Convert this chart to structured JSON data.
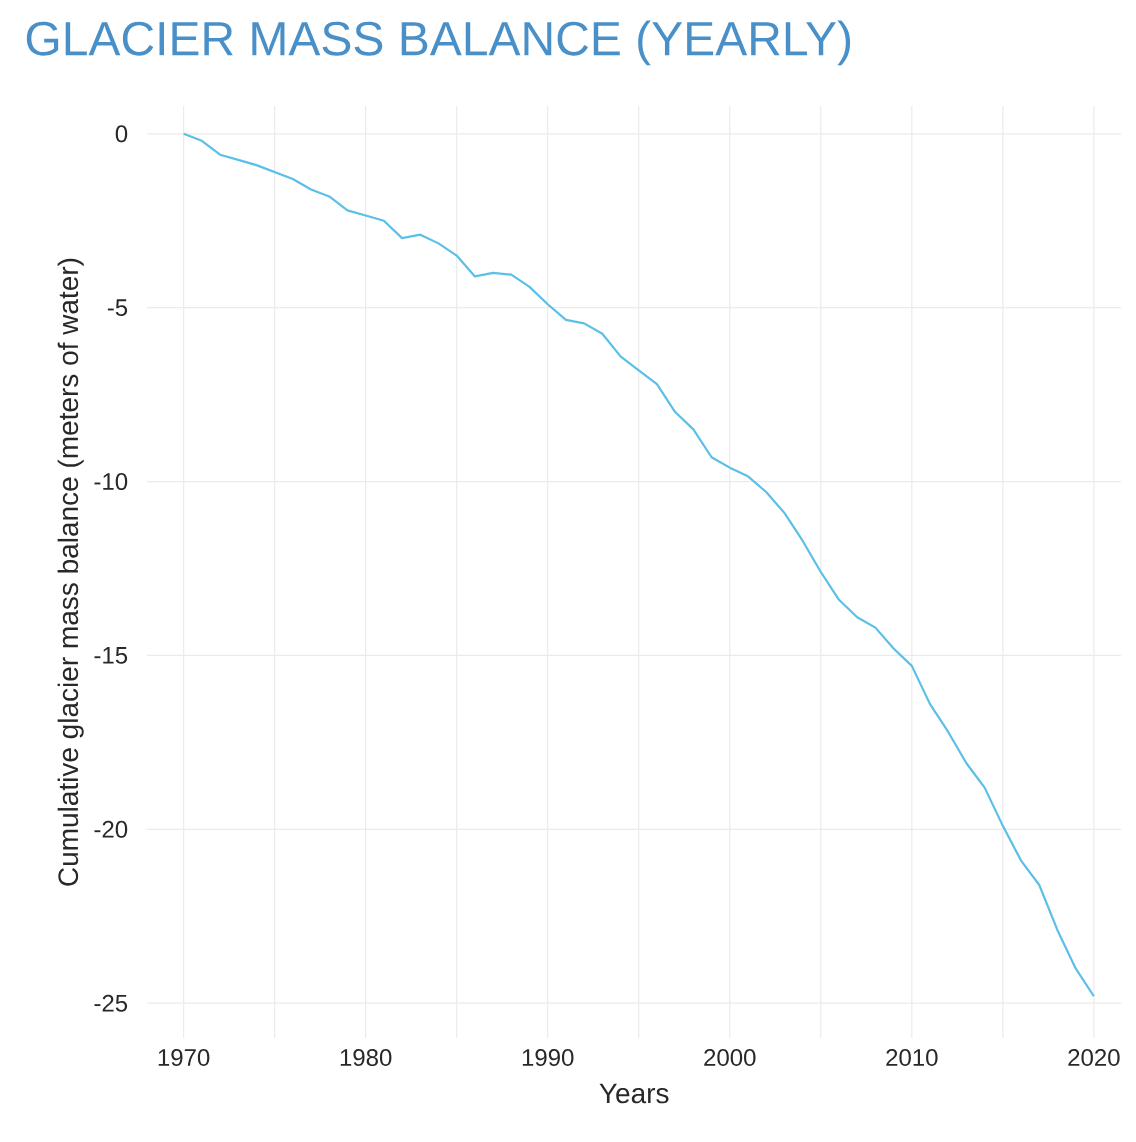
{
  "chart_data": {
    "type": "line",
    "title": "GLACIER MASS BALANCE (YEARLY)",
    "xlabel": "Years",
    "ylabel": "Cumulative glacier mass balance (meters of water)",
    "x": [
      1970,
      1971,
      1972,
      1973,
      1974,
      1975,
      1976,
      1977,
      1978,
      1979,
      1980,
      1981,
      1982,
      1983,
      1984,
      1985,
      1986,
      1987,
      1988,
      1989,
      1990,
      1991,
      1992,
      1993,
      1994,
      1995,
      1996,
      1997,
      1998,
      1999,
      2000,
      2001,
      2002,
      2003,
      2004,
      2005,
      2006,
      2007,
      2008,
      2009,
      2010,
      2011,
      2012,
      2013,
      2014,
      2015,
      2016,
      2017,
      2018,
      2019,
      2020
    ],
    "series": [
      {
        "color": "#5bbfe8",
        "values": [
          0,
          -0.2,
          -0.6,
          -0.75,
          -0.9,
          -1.1,
          -1.3,
          -1.6,
          -1.8,
          -2.2,
          -2.35,
          -2.5,
          -3.0,
          -2.9,
          -3.15,
          -3.5,
          -4.1,
          -4.0,
          -4.05,
          -4.4,
          -4.9,
          -5.35,
          -5.45,
          -5.75,
          -6.4,
          -6.8,
          -7.2,
          -8.0,
          -8.5,
          -9.3,
          -9.6,
          -9.85,
          -10.3,
          -10.9,
          -11.7,
          -12.6,
          -13.4,
          -13.9,
          -14.2,
          -14.8,
          -15.3,
          -16.4,
          -17.2,
          -18.1,
          -18.8,
          -19.9,
          -20.9,
          -21.6,
          -22.9,
          -24.0,
          -24.8
        ]
      }
    ],
    "xlim": [
      1968,
      2021.5
    ],
    "ylim": [
      -26,
      0.8
    ],
    "xticks": [
      1970,
      {
        "value": 1975,
        "label": null
      },
      1980,
      {
        "value": 1985,
        "label": null
      },
      1990,
      {
        "value": 1995,
        "label": null
      },
      2000,
      {
        "value": 2005,
        "label": null
      },
      2010,
      {
        "value": 2015,
        "label": null
      },
      2020
    ],
    "yticks": [
      0,
      -5,
      -10,
      -15,
      -20,
      -25
    ],
    "grid": true,
    "marker": "none",
    "line_style": "solid"
  }
}
